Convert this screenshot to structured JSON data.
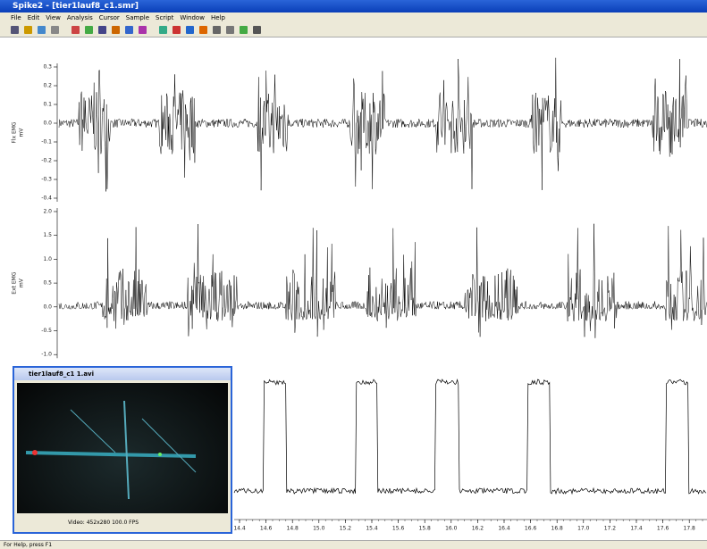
{
  "window": {
    "title": "Spike2 - [tier1lauf8_c1.smr]"
  },
  "menu": [
    "File",
    "Edit",
    "View",
    "Analysis",
    "Cursor",
    "Sample",
    "Script",
    "Window",
    "Help"
  ],
  "channels": [
    {
      "label": "Flx EMG",
      "unit": "mV",
      "yticks": [
        "0.3",
        "0.2",
        "0.1",
        "0.0",
        "-0.1",
        "-0.2",
        "-0.3",
        "-0.4"
      ]
    },
    {
      "label": "Ext EMG",
      "unit": "mV",
      "yticks": [
        "2.0",
        "1.5",
        "1.0",
        "0.5",
        "0.0",
        "-0.5",
        "-1.0"
      ]
    }
  ],
  "xticks": [
    "14.4",
    "14.6",
    "14.8",
    "15.0",
    "15.2",
    "15.4",
    "15.6",
    "15.8",
    "16.0",
    "16.2",
    "16.4",
    "16.6",
    "16.8",
    "17.0",
    "17.2",
    "17.4",
    "17.6",
    "17.8"
  ],
  "video": {
    "title": "tier1lauf8_c1 1.avi",
    "status": "Video: 452x280 100.0 FPS"
  },
  "statusbar": {
    "help": "For Help, press F1"
  }
}
